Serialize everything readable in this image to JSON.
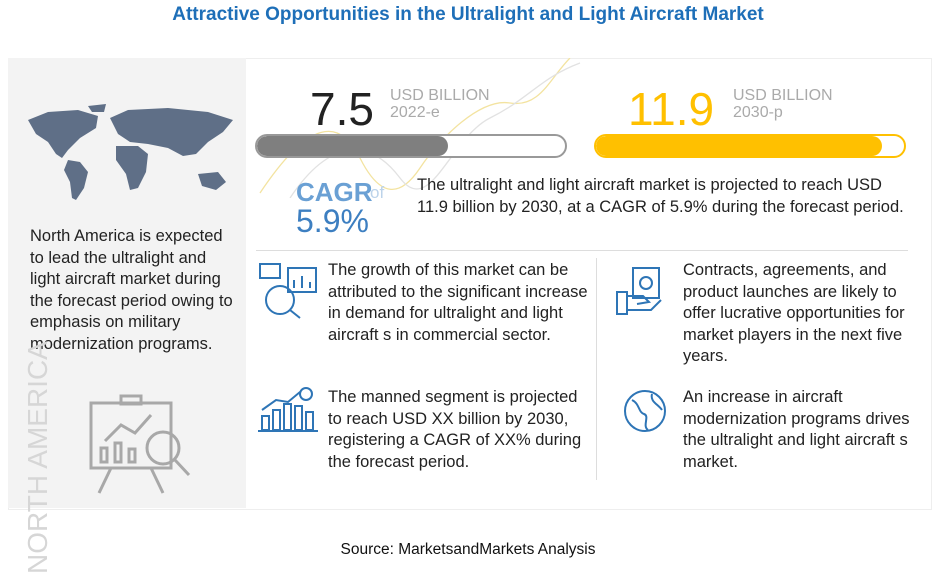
{
  "title": "Attractive Opportunities in the Ultralight and Light Aircraft Market",
  "left_panel": {
    "map_icon": "world-map-icon",
    "text": "North America  is expected to lead the ultralight and light aircraft market during the forecast period owing to emphasis on military modernization programs.",
    "vertical_label": "NORTH AMERICA",
    "bottom_icon": "presentation-analysis-icon"
  },
  "metrics": [
    {
      "value": "7.5",
      "unit": "USD BILLION",
      "year": "2022-e",
      "bar_fill_percent": 62,
      "color": "#7f7f7f",
      "value_color": "#222222"
    },
    {
      "value": "11.9",
      "unit": "USD BILLION",
      "year": "2030-p",
      "bar_fill_percent": 93,
      "color": "#ffc000",
      "value_color": "#ffc000"
    }
  ],
  "cagr": {
    "label": "CAGR",
    "of": "of",
    "value": "5.9%",
    "text": "The ultralight and light aircraft market is projected to reach USD 11.9 billion  by 2030, at a CAGR of 5.9% during the forecast period."
  },
  "insights": [
    {
      "icon": "chart-analysis-icon",
      "text": "The growth of this market can be attributed to the significant increase in demand for ultralight and light aircraft s in commercial sector."
    },
    {
      "icon": "hand-money-icon",
      "text": "Contracts, agreements, and product launches are likely to offer lucrative opportunities for market players in the next five years."
    },
    {
      "icon": "growth-bar-chart-icon",
      "text": "The manned segment is projected to reach USD XX billion by 2030, registering a CAGR of XX% during the forecast period."
    },
    {
      "icon": "globe-icon",
      "text": "An increase in aircraft modernization programs drives the ultralight and light aircraft s market."
    }
  ],
  "source": "Source: MarketsandMarkets Analysis"
}
